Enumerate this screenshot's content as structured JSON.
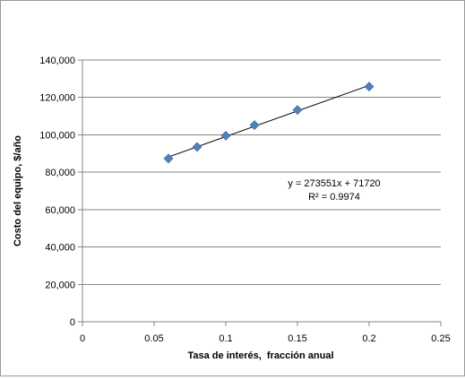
{
  "chart_data": {
    "type": "scatter",
    "title": "",
    "xlabel": "Tasa de interés,  fracción anual",
    "ylabel": "Costo del equipo, $/año",
    "xlim": [
      0,
      0.25
    ],
    "ylim": [
      0,
      140000
    ],
    "x_ticks": [
      0,
      0.05,
      0.1,
      0.15,
      0.2,
      0.25
    ],
    "x_tick_labels": [
      "0",
      "0.05",
      "0.1",
      "0.15",
      "0.2",
      "0.25"
    ],
    "y_ticks": [
      0,
      20000,
      40000,
      60000,
      80000,
      100000,
      120000,
      140000
    ],
    "y_tick_labels": [
      "0",
      "20,000",
      "40,000",
      "60,000",
      "80,000",
      "100,000",
      "120,000",
      "140,000"
    ],
    "grid": "horizontal",
    "legend": "none",
    "marker_color": "#4f81bd",
    "series": [
      {
        "x": [
          0.06,
          0.08,
          0.1,
          0.12,
          0.15,
          0.2
        ],
        "y": [
          87300,
          93500,
          99500,
          105200,
          113300,
          125800
        ]
      }
    ],
    "trendline": {
      "type": "linear",
      "slope": 273551,
      "intercept": 71720,
      "x_range": [
        0.06,
        0.2
      ],
      "color": "#000000",
      "equation_label": "y = 273551x + 71720",
      "r2_label": "R² = 0.9974"
    }
  }
}
